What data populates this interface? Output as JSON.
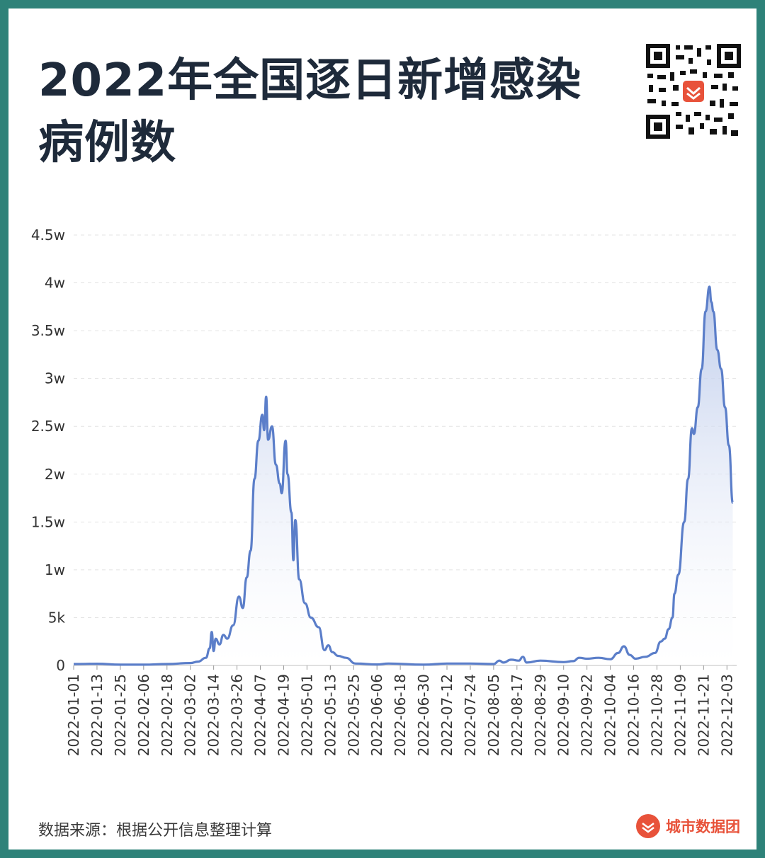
{
  "header": {
    "title": "2022年全国逐日新增感染病例数"
  },
  "footer": {
    "source": "数据来源：根据公开信息整理计算",
    "brand": "城市数据团"
  },
  "colors": {
    "line": "#5b7ec9",
    "fill_top": "#c9d4ec",
    "frame": "#2e8279",
    "brand": "#e8523a"
  },
  "icons": {
    "qr": "qr-code-icon",
    "brand": "city-data-logo-icon"
  },
  "chart_data": {
    "type": "area",
    "title": "2022年全国逐日新增感染病例数",
    "xlabel": "",
    "ylabel": "",
    "ylim": [
      0,
      45000
    ],
    "grid": true,
    "y_ticks": [
      {
        "value": 0,
        "label": "0"
      },
      {
        "value": 5000,
        "label": "5k"
      },
      {
        "value": 10000,
        "label": "1w"
      },
      {
        "value": 15000,
        "label": "1.5w"
      },
      {
        "value": 20000,
        "label": "2w"
      },
      {
        "value": 25000,
        "label": "2.5w"
      },
      {
        "value": 30000,
        "label": "3w"
      },
      {
        "value": 35000,
        "label": "3.5w"
      },
      {
        "value": 40000,
        "label": "4w"
      },
      {
        "value": 45000,
        "label": "4.5w"
      }
    ],
    "x_tick_labels": [
      "2022-01-01",
      "2022-01-13",
      "2022-01-25",
      "2022-02-06",
      "2022-02-18",
      "2022-03-02",
      "2022-03-14",
      "2022-03-26",
      "2022-04-07",
      "2022-04-19",
      "2022-05-01",
      "2022-05-13",
      "2022-05-25",
      "2022-06-06",
      "2022-06-18",
      "2022-06-30",
      "2022-07-12",
      "2022-07-24",
      "2022-08-05",
      "2022-08-17",
      "2022-08-29",
      "2022-09-10",
      "2022-09-22",
      "2022-10-04",
      "2022-10-16",
      "2022-10-28",
      "2022-11-09",
      "2022-11-21",
      "2022-12-03"
    ],
    "x_range": [
      "2022-01-01",
      "2022-12-08"
    ],
    "series": [
      {
        "name": "",
        "points": [
          [
            "2022-01-01",
            150
          ],
          [
            "2022-01-13",
            180
          ],
          [
            "2022-01-25",
            80
          ],
          [
            "2022-02-06",
            80
          ],
          [
            "2022-02-18",
            150
          ],
          [
            "2022-03-02",
            250
          ],
          [
            "2022-03-06",
            400
          ],
          [
            "2022-03-10",
            800
          ],
          [
            "2022-03-12",
            1800
          ],
          [
            "2022-03-13",
            3500
          ],
          [
            "2022-03-14",
            1500
          ],
          [
            "2022-03-15",
            2800
          ],
          [
            "2022-03-17",
            2200
          ],
          [
            "2022-03-19",
            3200
          ],
          [
            "2022-03-21",
            2800
          ],
          [
            "2022-03-24",
            4200
          ],
          [
            "2022-03-27",
            7200
          ],
          [
            "2022-03-29",
            6000
          ],
          [
            "2022-03-31",
            9200
          ],
          [
            "2022-04-02",
            12000
          ],
          [
            "2022-04-04",
            19500
          ],
          [
            "2022-04-06",
            23500
          ],
          [
            "2022-04-08",
            26200
          ],
          [
            "2022-04-09",
            24600
          ],
          [
            "2022-04-10",
            28100
          ],
          [
            "2022-04-11",
            23600
          ],
          [
            "2022-04-13",
            25000
          ],
          [
            "2022-04-15",
            21000
          ],
          [
            "2022-04-17",
            19000
          ],
          [
            "2022-04-18",
            18000
          ],
          [
            "2022-04-20",
            23500
          ],
          [
            "2022-04-21",
            20000
          ],
          [
            "2022-04-23",
            16000
          ],
          [
            "2022-04-24",
            11000
          ],
          [
            "2022-04-25",
            15200
          ],
          [
            "2022-04-27",
            9000
          ],
          [
            "2022-04-30",
            6500
          ],
          [
            "2022-05-03",
            5000
          ],
          [
            "2022-05-07",
            4000
          ],
          [
            "2022-05-10",
            1600
          ],
          [
            "2022-05-12",
            2100
          ],
          [
            "2022-05-14",
            1400
          ],
          [
            "2022-05-17",
            1000
          ],
          [
            "2022-05-21",
            800
          ],
          [
            "2022-05-26",
            200
          ],
          [
            "2022-06-06",
            100
          ],
          [
            "2022-06-12",
            200
          ],
          [
            "2022-06-30",
            80
          ],
          [
            "2022-07-12",
            200
          ],
          [
            "2022-07-24",
            200
          ],
          [
            "2022-08-05",
            150
          ],
          [
            "2022-08-08",
            500
          ],
          [
            "2022-08-10",
            300
          ],
          [
            "2022-08-14",
            600
          ],
          [
            "2022-08-18",
            500
          ],
          [
            "2022-08-20",
            900
          ],
          [
            "2022-08-22",
            300
          ],
          [
            "2022-08-29",
            500
          ],
          [
            "2022-09-10",
            350
          ],
          [
            "2022-09-15",
            450
          ],
          [
            "2022-09-18",
            800
          ],
          [
            "2022-09-22",
            700
          ],
          [
            "2022-09-28",
            800
          ],
          [
            "2022-10-04",
            650
          ],
          [
            "2022-10-08",
            1300
          ],
          [
            "2022-10-11",
            2000
          ],
          [
            "2022-10-14",
            1100
          ],
          [
            "2022-10-17",
            700
          ],
          [
            "2022-10-22",
            900
          ],
          [
            "2022-10-27",
            1300
          ],
          [
            "2022-10-30",
            2500
          ],
          [
            "2022-11-01",
            2800
          ],
          [
            "2022-11-03",
            3800
          ],
          [
            "2022-11-05",
            5000
          ],
          [
            "2022-11-06",
            7500
          ],
          [
            "2022-11-08",
            9500
          ],
          [
            "2022-11-11",
            15000
          ],
          [
            "2022-11-13",
            19500
          ],
          [
            "2022-11-15",
            24800
          ],
          [
            "2022-11-16",
            24200
          ],
          [
            "2022-11-18",
            27000
          ],
          [
            "2022-11-20",
            31000
          ],
          [
            "2022-11-22",
            37000
          ],
          [
            "2022-11-24",
            39600
          ],
          [
            "2022-11-25",
            38000
          ],
          [
            "2022-11-26",
            37000
          ],
          [
            "2022-11-28",
            33000
          ],
          [
            "2022-11-30",
            31000
          ],
          [
            "2022-12-02",
            27000
          ],
          [
            "2022-12-04",
            23000
          ],
          [
            "2022-12-06",
            17000
          ]
        ]
      }
    ]
  }
}
